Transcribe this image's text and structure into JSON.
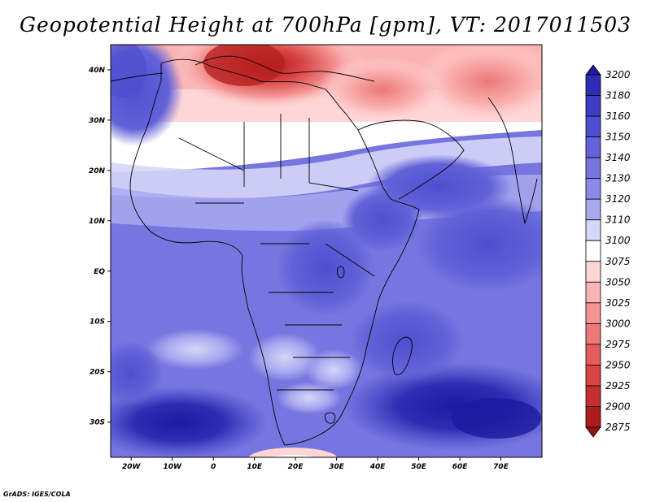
{
  "title": "Geopotential Height at 700hPa [gpm], VT: 2017011503",
  "credit": "GrADS: IGES/COLA",
  "map": {
    "lon_range": [
      -25,
      80
    ],
    "lat_range": [
      -37,
      45
    ],
    "lat_ticks": [
      {
        "value": 40,
        "label": "40N"
      },
      {
        "value": 30,
        "label": "30N"
      },
      {
        "value": 20,
        "label": "20N"
      },
      {
        "value": 10,
        "label": "10N"
      },
      {
        "value": 0,
        "label": "EQ"
      },
      {
        "value": -10,
        "label": "10S"
      },
      {
        "value": -20,
        "label": "20S"
      },
      {
        "value": -30,
        "label": "30S"
      }
    ],
    "lon_ticks": [
      {
        "value": -20,
        "label": "20W"
      },
      {
        "value": -10,
        "label": "10W"
      },
      {
        "value": 0,
        "label": "0"
      },
      {
        "value": 10,
        "label": "10E"
      },
      {
        "value": 20,
        "label": "20E"
      },
      {
        "value": 30,
        "label": "30E"
      },
      {
        "value": 40,
        "label": "40E"
      },
      {
        "value": 50,
        "label": "50E"
      },
      {
        "value": 60,
        "label": "60E"
      },
      {
        "value": 70,
        "label": "70E"
      }
    ]
  },
  "colorbar": {
    "levels": [
      "3200",
      "3180",
      "3160",
      "3150",
      "3140",
      "3130",
      "3120",
      "3110",
      "3100",
      "3075",
      "3050",
      "3025",
      "3000",
      "2975",
      "2950",
      "2925",
      "2900",
      "2875"
    ],
    "colors": [
      "#1c1a9e",
      "#2e2cb2",
      "#3e3dc4",
      "#4f4ed0",
      "#6362d8",
      "#7776e0",
      "#8b8ae8",
      "#a9a9f0",
      "#d6d6f8",
      "#ffffff",
      "#ffd6d6",
      "#fbb4b4",
      "#f49494",
      "#ec7878",
      "#e45c5c",
      "#d84444",
      "#c42e2e",
      "#ac1c1c",
      "#961212"
    ]
  }
}
